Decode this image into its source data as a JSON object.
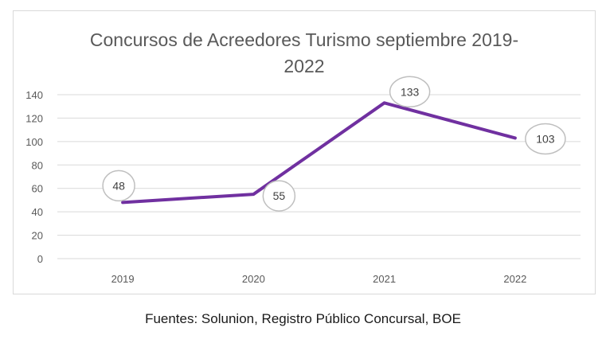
{
  "chart_data": {
    "type": "line",
    "title": "Concursos de Acreedores Turismo septiembre 2019-2022",
    "title_lines": [
      "Concursos de Acreedores Turismo septiembre 2019-",
      "2022"
    ],
    "categories": [
      "2019",
      "2020",
      "2021",
      "2022"
    ],
    "series": [
      {
        "values": [
          48,
          55,
          133,
          103
        ],
        "color": "#7030a0"
      }
    ],
    "data_labels": [
      "48",
      "55",
      "133",
      "103"
    ],
    "ylim": [
      0,
      140
    ],
    "yticks": [
      0,
      20,
      40,
      60,
      80,
      100,
      120,
      140
    ],
    "grid": true,
    "legend": "none",
    "colors": {
      "line": "#7030a0",
      "grid": "#d9d9d9",
      "text": "#595959",
      "label_border": "#bfbfbf"
    }
  },
  "footer": {
    "source": "Fuentes: Solunion, Registro Público Concursal, BOE"
  }
}
